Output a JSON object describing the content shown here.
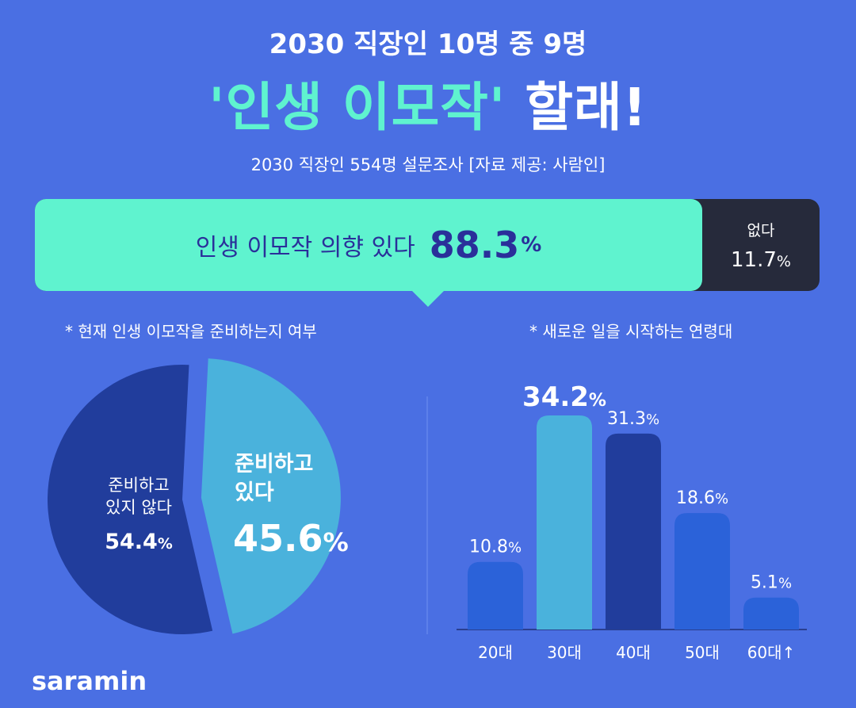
{
  "header": {
    "top_line": "2030 직장인 10명 중 9명",
    "main_quote": "'인생 이모작'",
    "main_suffix": "할래!",
    "survey_note": "2030 직장인 554명 설문조사 [자료 제공: 사람인]"
  },
  "intent": {
    "yes_label": "인생 이모작 의향 있다",
    "yes_value": "88.3",
    "yes_unit": "%",
    "no_label": "없다",
    "no_value": "11.7",
    "no_unit": "%"
  },
  "pie": {
    "caption": "* 현재 인생 이모작을 준비하는지 여부",
    "dark_label_1": "준비하고",
    "dark_label_2": "있지 않다",
    "dark_value": "54.4",
    "light_label_1": "준비하고",
    "light_label_2": "있다",
    "light_value": "45.6",
    "unit": "%"
  },
  "bars": {
    "caption": "* 새로운 일을 시작하는 연령대"
  },
  "colors": {
    "background": "#4a6fe3",
    "mint": "#5ff3cf",
    "dark": "#262a3b",
    "pie_dark": "#213d9c",
    "pie_light": "#4ab2dc",
    "bar_normal": "#2b62d9",
    "bar_highlight": "#4ab2dc",
    "bar_dark": "#213d9c"
  },
  "chart_data": [
    {
      "type": "bar",
      "intent": "overall intent",
      "categories": [
        "인생 이모작 의향 있다",
        "없다"
      ],
      "values": [
        88.3,
        11.7
      ],
      "unit": "%"
    },
    {
      "type": "pie",
      "title": "* 현재 인생 이모작을 준비하는지 여부",
      "labels": [
        "준비하고 있지 않다",
        "준비하고 있다"
      ],
      "values": [
        54.4,
        45.6
      ],
      "unit": "%"
    },
    {
      "type": "bar",
      "title": "* 새로운 일을 시작하는 연령대",
      "categories": [
        "20대",
        "30대",
        "40대",
        "50대",
        "60대↑"
      ],
      "values": [
        10.8,
        34.2,
        31.3,
        18.6,
        5.1
      ],
      "value_labels": [
        "10.8",
        "34.2",
        "31.3",
        "18.6",
        "5.1"
      ],
      "unit": "%",
      "ylim": [
        0,
        34.2
      ],
      "grid": false,
      "highlight_index": 1,
      "bar_color_keys": [
        "bar_normal",
        "bar_highlight",
        "bar_dark",
        "bar_normal",
        "bar_normal"
      ]
    }
  ],
  "logo": {
    "text": "saramin"
  }
}
